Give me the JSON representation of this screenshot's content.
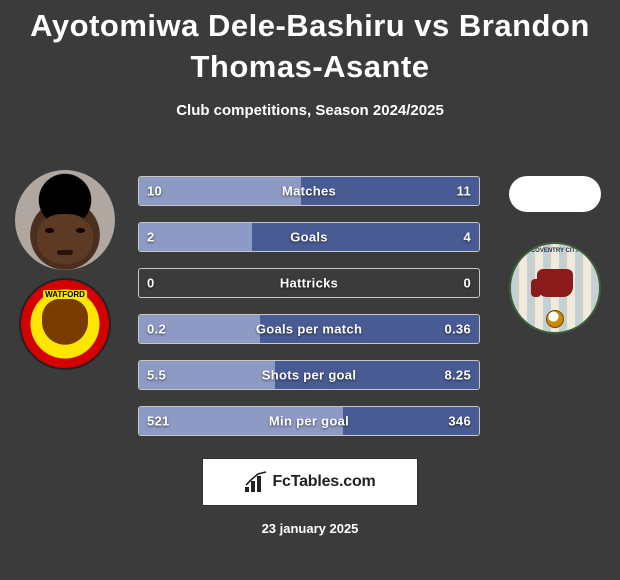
{
  "background_color": "#3b3b3b",
  "text_color": "#ffffff",
  "title": {
    "text": "Ayotomiwa Dele-Bashiru vs Brandon Thomas-Asante",
    "fontsize": 31,
    "font_weight": 900,
    "color": "#ffffff"
  },
  "subtitle": {
    "text": "Club competitions, Season 2024/2025",
    "fontsize": 15,
    "font_weight": 700
  },
  "player_left": {
    "name": "Ayotomiwa Dele-Bashiru",
    "club": "Watford",
    "club_colors": {
      "primary": "#ffe600",
      "secondary": "#d40000"
    }
  },
  "player_right": {
    "name": "Brandon Thomas-Asante",
    "club": "Coventry City",
    "club_colors": {
      "primary": "#7fb4e6",
      "secondary": "#eadfc8",
      "trim": "#3a5f3a"
    }
  },
  "bar_style": {
    "height": 30,
    "gap": 16,
    "border_color": "#c7c7c7",
    "border_radius": 3,
    "label_fontsize": 13,
    "label_weight": 600,
    "left_fill_color": "#8d9ac4",
    "right_fill_color": "#495b93"
  },
  "stats": [
    {
      "name": "Matches",
      "left_text": "10",
      "right_text": "11",
      "left_pct": 47.6,
      "right_pct": 52.4
    },
    {
      "name": "Goals",
      "left_text": "2",
      "right_text": "4",
      "left_pct": 33.3,
      "right_pct": 66.7
    },
    {
      "name": "Hattricks",
      "left_text": "0",
      "right_text": "0",
      "left_pct": 0,
      "right_pct": 0
    },
    {
      "name": "Goals per match",
      "left_text": "0.2",
      "right_text": "0.36",
      "left_pct": 35.7,
      "right_pct": 64.3
    },
    {
      "name": "Shots per goal",
      "left_text": "5.5",
      "right_text": "8.25",
      "left_pct": 40.0,
      "right_pct": 60.0
    },
    {
      "name": "Min per goal",
      "left_text": "521",
      "right_text": "346",
      "left_pct": 60.1,
      "right_pct": 39.9
    }
  ],
  "footer": {
    "brand": "FcTables.com",
    "brand_fontsize": 16,
    "box_bg": "#ffffff",
    "box_border": "#333333",
    "date": "23 january 2025",
    "date_fontsize": 13
  }
}
